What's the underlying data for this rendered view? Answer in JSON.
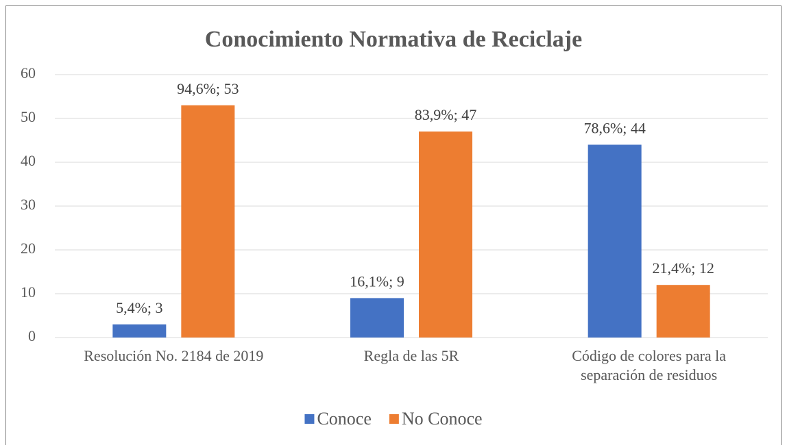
{
  "chart_data": {
    "type": "bar",
    "title": "Conocimiento Normativa de Reciclaje",
    "categories": [
      "Resolución No. 2184 de 2019",
      "Regla de las 5R",
      "Código de colores para la separación de residuos"
    ],
    "series": [
      {
        "name": "Conoce",
        "color": "#4472c4",
        "values": [
          3,
          9,
          44
        ],
        "value_labels": [
          "5,4%; 3",
          "16,1%; 9",
          "78,6%; 44"
        ]
      },
      {
        "name": "No Conoce",
        "color": "#ed7d31",
        "values": [
          53,
          47,
          12
        ],
        "value_labels": [
          "94,6%; 53",
          "83,9%; 47",
          "21,4%; 12"
        ]
      }
    ],
    "ylim": [
      0,
      60
    ],
    "yticks": [
      0,
      10,
      20,
      30,
      40,
      50,
      60
    ],
    "grid": true,
    "legend": "bottom"
  }
}
